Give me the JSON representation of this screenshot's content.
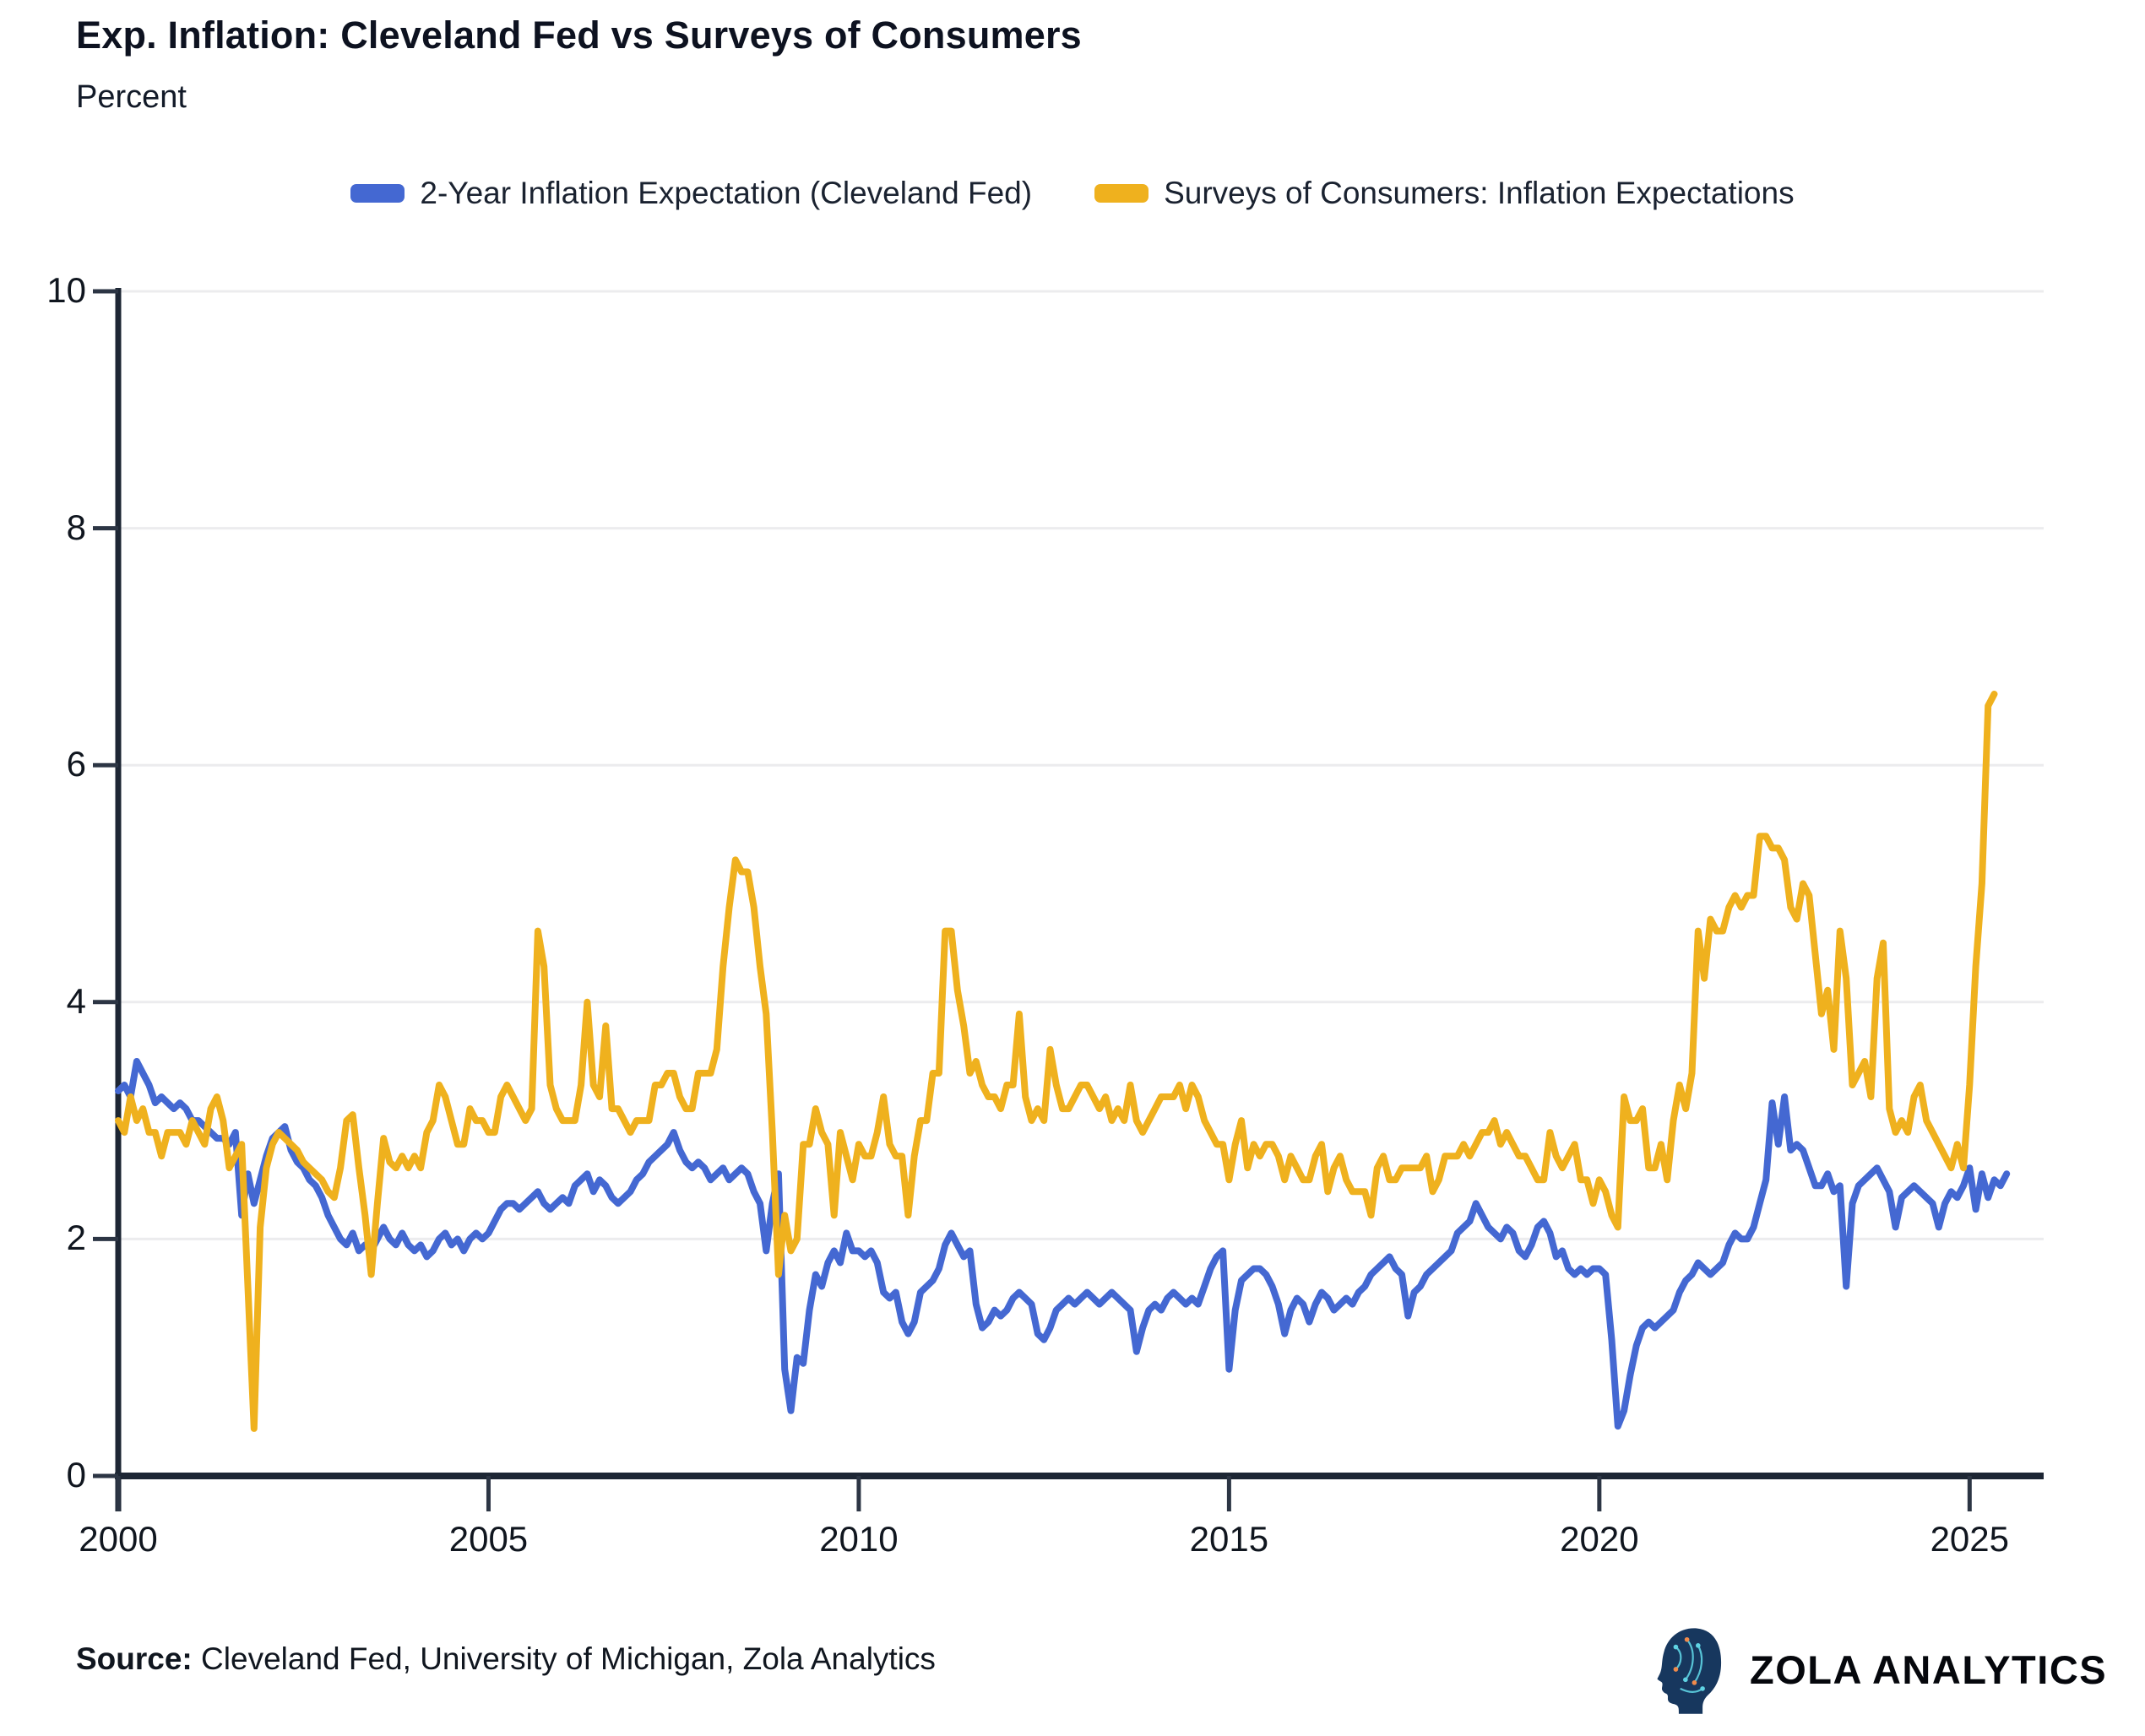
{
  "header": {
    "title": "Exp. Inflation: Cleveland Fed vs Surveys of Consumers",
    "subtitle": "Percent"
  },
  "legend": [
    {
      "label": "2-Year Inflation Expectation (Cleveland Fed)",
      "color": "#4468d2"
    },
    {
      "label": "Surveys of Consumers: Inflation Expectations",
      "color": "#efb11e"
    }
  ],
  "footer": {
    "source_label": "Source:",
    "source_text": " Cleveland Fed, University of Michigan, Zola Analytics",
    "brand": "ZOLA ANALYTICS"
  },
  "colors": {
    "axis": "#1d2634",
    "tick": "#2c3544",
    "grid": "#ececee",
    "blue_line": "#4468d2",
    "yellow_line": "#efb11e",
    "logo_head": "#17375e",
    "logo_circuit": "#5fd3e3",
    "logo_accent": "#f08a4b"
  },
  "chart_data": {
    "type": "line",
    "title": "Exp. Inflation: Cleveland Fed vs Surveys of Consumers",
    "xlabel": "",
    "ylabel": "Percent",
    "xlim": [
      2000,
      2026
    ],
    "ylim": [
      0,
      10
    ],
    "x_ticks": [
      2000,
      2005,
      2010,
      2015,
      2020,
      2025
    ],
    "y_ticks": [
      0,
      2,
      4,
      6,
      8,
      10
    ],
    "grid": true,
    "legend_position": "top",
    "x_start_year": 2000,
    "x_step_months": 1,
    "series": [
      {
        "name": "2-Year Inflation Expectation (Cleveland Fed)",
        "color": "#4468d2",
        "values": [
          3.25,
          3.3,
          3.2,
          3.5,
          3.4,
          3.3,
          3.15,
          3.2,
          3.15,
          3.1,
          3.15,
          3.1,
          3.0,
          3.0,
          2.95,
          2.9,
          2.85,
          2.85,
          2.8,
          2.9,
          2.2,
          2.55,
          2.3,
          2.5,
          2.7,
          2.85,
          2.9,
          2.95,
          2.75,
          2.65,
          2.6,
          2.5,
          2.45,
          2.35,
          2.2,
          2.1,
          2.0,
          1.95,
          2.05,
          1.9,
          1.95,
          1.9,
          2.0,
          2.1,
          2.0,
          1.95,
          2.05,
          1.95,
          1.9,
          1.95,
          1.85,
          1.9,
          2.0,
          2.05,
          1.95,
          2.0,
          1.9,
          2.0,
          2.05,
          2.0,
          2.05,
          2.15,
          2.25,
          2.3,
          2.3,
          2.25,
          2.3,
          2.35,
          2.4,
          2.3,
          2.25,
          2.3,
          2.35,
          2.3,
          2.45,
          2.5,
          2.55,
          2.4,
          2.5,
          2.45,
          2.35,
          2.3,
          2.35,
          2.4,
          2.5,
          2.55,
          2.65,
          2.7,
          2.75,
          2.8,
          2.9,
          2.75,
          2.65,
          2.6,
          2.65,
          2.6,
          2.5,
          2.55,
          2.6,
          2.5,
          2.55,
          2.6,
          2.55,
          2.4,
          2.3,
          1.9,
          2.3,
          2.55,
          0.9,
          0.55,
          1.0,
          0.95,
          1.4,
          1.7,
          1.6,
          1.8,
          1.9,
          1.8,
          2.05,
          1.9,
          1.9,
          1.85,
          1.9,
          1.8,
          1.55,
          1.5,
          1.55,
          1.3,
          1.2,
          1.3,
          1.55,
          1.6,
          1.65,
          1.75,
          1.95,
          2.05,
          1.95,
          1.85,
          1.9,
          1.45,
          1.25,
          1.3,
          1.4,
          1.35,
          1.4,
          1.5,
          1.55,
          1.5,
          1.45,
          1.2,
          1.15,
          1.25,
          1.4,
          1.45,
          1.5,
          1.45,
          1.5,
          1.55,
          1.5,
          1.45,
          1.5,
          1.55,
          1.5,
          1.45,
          1.4,
          1.05,
          1.25,
          1.4,
          1.45,
          1.4,
          1.5,
          1.55,
          1.5,
          1.45,
          1.5,
          1.45,
          1.6,
          1.75,
          1.85,
          1.9,
          0.9,
          1.4,
          1.65,
          1.7,
          1.75,
          1.75,
          1.7,
          1.6,
          1.45,
          1.2,
          1.4,
          1.5,
          1.45,
          1.3,
          1.45,
          1.55,
          1.5,
          1.4,
          1.45,
          1.5,
          1.45,
          1.55,
          1.6,
          1.7,
          1.75,
          1.8,
          1.85,
          1.75,
          1.7,
          1.35,
          1.55,
          1.6,
          1.7,
          1.75,
          1.8,
          1.85,
          1.9,
          2.05,
          2.1,
          2.15,
          2.3,
          2.2,
          2.1,
          2.05,
          2.0,
          2.1,
          2.05,
          1.9,
          1.85,
          1.95,
          2.1,
          2.15,
          2.05,
          1.85,
          1.9,
          1.75,
          1.7,
          1.75,
          1.7,
          1.75,
          1.75,
          1.7,
          1.15,
          0.42,
          0.55,
          0.85,
          1.1,
          1.25,
          1.3,
          1.25,
          1.3,
          1.35,
          1.4,
          1.55,
          1.65,
          1.7,
          1.8,
          1.75,
          1.7,
          1.75,
          1.8,
          1.95,
          2.05,
          2.0,
          2.0,
          2.1,
          2.3,
          2.5,
          3.15,
          2.8,
          3.2,
          2.75,
          2.8,
          2.75,
          2.6,
          2.45,
          2.45,
          2.55,
          2.4,
          2.45,
          1.6,
          2.3,
          2.45,
          2.5,
          2.55,
          2.6,
          2.5,
          2.4,
          2.1,
          2.35,
          2.4,
          2.45,
          2.4,
          2.35,
          2.3,
          2.1,
          2.3,
          2.4,
          2.35,
          2.45,
          2.6,
          2.25,
          2.55,
          2.35,
          2.5,
          2.45,
          2.55
        ]
      },
      {
        "name": "Surveys of Consumers: Inflation Expectations",
        "color": "#efb11e",
        "values": [
          3.0,
          2.9,
          3.2,
          3.0,
          3.1,
          2.9,
          2.9,
          2.7,
          2.9,
          2.9,
          2.9,
          2.8,
          3.0,
          2.9,
          2.8,
          3.1,
          3.2,
          3.0,
          2.6,
          2.7,
          2.8,
          1.6,
          0.4,
          2.1,
          2.6,
          2.8,
          2.9,
          2.85,
          2.8,
          2.75,
          2.65,
          2.6,
          2.55,
          2.5,
          2.4,
          2.35,
          2.6,
          3.0,
          3.05,
          2.6,
          2.2,
          1.7,
          2.3,
          2.85,
          2.65,
          2.6,
          2.7,
          2.6,
          2.7,
          2.6,
          2.9,
          3.0,
          3.3,
          3.2,
          3.0,
          2.8,
          2.8,
          3.1,
          3.0,
          3.0,
          2.9,
          2.9,
          3.2,
          3.3,
          3.2,
          3.1,
          3.0,
          3.1,
          4.6,
          4.3,
          3.3,
          3.1,
          3.0,
          3.0,
          3.0,
          3.3,
          4.0,
          3.3,
          3.2,
          3.8,
          3.1,
          3.1,
          3.0,
          2.9,
          3.0,
          3.0,
          3.0,
          3.3,
          3.3,
          3.4,
          3.4,
          3.2,
          3.1,
          3.1,
          3.4,
          3.4,
          3.4,
          3.6,
          4.3,
          4.8,
          5.2,
          5.1,
          5.1,
          4.8,
          4.3,
          3.9,
          2.9,
          1.7,
          2.2,
          1.9,
          2.0,
          2.8,
          2.8,
          3.1,
          2.9,
          2.8,
          2.2,
          2.9,
          2.7,
          2.5,
          2.8,
          2.7,
          2.7,
          2.9,
          3.2,
          2.8,
          2.7,
          2.7,
          2.2,
          2.7,
          3.0,
          3.0,
          3.4,
          3.4,
          4.6,
          4.6,
          4.1,
          3.8,
          3.4,
          3.5,
          3.3,
          3.2,
          3.2,
          3.1,
          3.3,
          3.3,
          3.9,
          3.2,
          3.0,
          3.1,
          3.0,
          3.6,
          3.3,
          3.1,
          3.1,
          3.2,
          3.3,
          3.3,
          3.2,
          3.1,
          3.2,
          3.0,
          3.1,
          3.0,
          3.3,
          3.0,
          2.9,
          3.0,
          3.1,
          3.2,
          3.2,
          3.2,
          3.3,
          3.1,
          3.3,
          3.2,
          3.0,
          2.9,
          2.8,
          2.8,
          2.5,
          2.8,
          3.0,
          2.6,
          2.8,
          2.7,
          2.8,
          2.8,
          2.7,
          2.5,
          2.7,
          2.6,
          2.5,
          2.5,
          2.7,
          2.8,
          2.4,
          2.6,
          2.7,
          2.5,
          2.4,
          2.4,
          2.4,
          2.2,
          2.6,
          2.7,
          2.5,
          2.5,
          2.6,
          2.6,
          2.6,
          2.6,
          2.7,
          2.4,
          2.5,
          2.7,
          2.7,
          2.7,
          2.8,
          2.7,
          2.8,
          2.9,
          2.9,
          3.0,
          2.8,
          2.9,
          2.8,
          2.7,
          2.7,
          2.6,
          2.5,
          2.5,
          2.9,
          2.7,
          2.6,
          2.7,
          2.8,
          2.5,
          2.5,
          2.3,
          2.5,
          2.4,
          2.2,
          2.1,
          3.2,
          3.0,
          3.0,
          3.1,
          2.6,
          2.6,
          2.8,
          2.5,
          3.0,
          3.3,
          3.1,
          3.4,
          4.6,
          4.2,
          4.7,
          4.6,
          4.6,
          4.8,
          4.9,
          4.8,
          4.9,
          4.9,
          5.4,
          5.4,
          5.3,
          5.3,
          5.2,
          4.8,
          4.7,
          5.0,
          4.9,
          4.4,
          3.9,
          4.1,
          3.6,
          4.6,
          4.2,
          3.3,
          3.4,
          3.5,
          3.2,
          4.2,
          4.5,
          3.1,
          2.9,
          3.0,
          2.9,
          3.2,
          3.3,
          3.0,
          2.9,
          2.8,
          2.7,
          2.6,
          2.8,
          2.6,
          3.3,
          4.3,
          5.0,
          6.5,
          6.6
        ]
      }
    ]
  }
}
